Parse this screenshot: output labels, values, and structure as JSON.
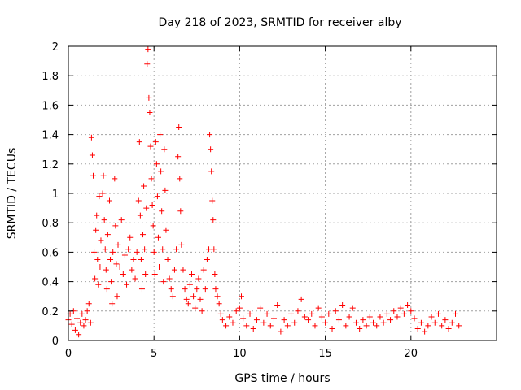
{
  "chart_data": {
    "type": "scatter",
    "title": "Day 218 of 2023, SRMTID for receiver alby",
    "xlabel": "GPS time / hours",
    "ylabel": "SRMTID / TECUs",
    "xlim": [
      0,
      25
    ],
    "ylim": [
      0,
      2
    ],
    "xticks": [
      0,
      5,
      10,
      15,
      20
    ],
    "yticks": [
      0,
      0.2,
      0.4,
      0.6,
      0.8,
      1,
      1.2,
      1.4,
      1.6,
      1.8,
      2
    ],
    "grid": true,
    "marker": "+",
    "color": "#ff0000",
    "series": [
      {
        "name": "SRMTID",
        "points": [
          [
            0.0,
            0.14
          ],
          [
            0.1,
            0.18
          ],
          [
            0.2,
            0.11
          ],
          [
            0.3,
            0.2
          ],
          [
            0.4,
            0.07
          ],
          [
            0.5,
            0.15
          ],
          [
            0.6,
            0.04
          ],
          [
            0.7,
            0.12
          ],
          [
            0.8,
            0.18
          ],
          [
            0.9,
            0.1
          ],
          [
            1.0,
            0.14
          ],
          [
            1.1,
            0.2
          ],
          [
            1.2,
            0.25
          ],
          [
            1.3,
            0.12
          ],
          [
            1.35,
            1.38
          ],
          [
            1.4,
            1.26
          ],
          [
            1.45,
            1.12
          ],
          [
            1.5,
            0.6
          ],
          [
            1.55,
            0.42
          ],
          [
            1.6,
            0.75
          ],
          [
            1.65,
            0.85
          ],
          [
            1.7,
            0.55
          ],
          [
            1.75,
            0.38
          ],
          [
            1.8,
            0.98
          ],
          [
            1.85,
            0.5
          ],
          [
            1.9,
            0.68
          ],
          [
            2.0,
            1.0
          ],
          [
            2.05,
            1.12
          ],
          [
            2.1,
            0.82
          ],
          [
            2.15,
            0.62
          ],
          [
            2.2,
            0.48
          ],
          [
            2.25,
            0.35
          ],
          [
            2.3,
            0.72
          ],
          [
            2.4,
            0.95
          ],
          [
            2.45,
            0.55
          ],
          [
            2.5,
            0.4
          ],
          [
            2.55,
            0.25
          ],
          [
            2.6,
            0.6
          ],
          [
            2.7,
            1.1
          ],
          [
            2.75,
            0.78
          ],
          [
            2.8,
            0.52
          ],
          [
            2.85,
            0.3
          ],
          [
            2.9,
            0.65
          ],
          [
            3.0,
            0.5
          ],
          [
            3.1,
            0.82
          ],
          [
            3.2,
            0.45
          ],
          [
            3.3,
            0.58
          ],
          [
            3.4,
            0.38
          ],
          [
            3.5,
            0.62
          ],
          [
            3.6,
            0.7
          ],
          [
            3.7,
            0.48
          ],
          [
            3.8,
            0.55
          ],
          [
            3.9,
            0.42
          ],
          [
            4.0,
            0.6
          ],
          [
            4.1,
            0.95
          ],
          [
            4.15,
            1.35
          ],
          [
            4.2,
            0.85
          ],
          [
            4.25,
            0.55
          ],
          [
            4.3,
            0.35
          ],
          [
            4.35,
            0.72
          ],
          [
            4.4,
            1.05
          ],
          [
            4.45,
            0.62
          ],
          [
            4.5,
            0.45
          ],
          [
            4.55,
            0.9
          ],
          [
            4.6,
            1.88
          ],
          [
            4.65,
            1.98
          ],
          [
            4.7,
            1.65
          ],
          [
            4.75,
            1.55
          ],
          [
            4.8,
            1.32
          ],
          [
            4.85,
            1.1
          ],
          [
            4.9,
            0.92
          ],
          [
            4.95,
            0.78
          ],
          [
            5.0,
            0.6
          ],
          [
            5.05,
            0.45
          ],
          [
            5.1,
            1.35
          ],
          [
            5.15,
            1.2
          ],
          [
            5.2,
            0.98
          ],
          [
            5.25,
            0.7
          ],
          [
            5.3,
            0.5
          ],
          [
            5.35,
            1.4
          ],
          [
            5.4,
            1.15
          ],
          [
            5.45,
            0.88
          ],
          [
            5.5,
            0.62
          ],
          [
            5.55,
            0.4
          ],
          [
            5.6,
            1.3
          ],
          [
            5.65,
            1.02
          ],
          [
            5.7,
            0.75
          ],
          [
            5.8,
            0.55
          ],
          [
            5.9,
            0.42
          ],
          [
            6.0,
            0.35
          ],
          [
            6.1,
            0.3
          ],
          [
            6.2,
            0.48
          ],
          [
            6.3,
            0.62
          ],
          [
            6.4,
            1.25
          ],
          [
            6.45,
            1.45
          ],
          [
            6.5,
            1.1
          ],
          [
            6.55,
            0.88
          ],
          [
            6.6,
            0.65
          ],
          [
            6.7,
            0.48
          ],
          [
            6.8,
            0.35
          ],
          [
            6.9,
            0.28
          ],
          [
            7.0,
            0.25
          ],
          [
            7.1,
            0.38
          ],
          [
            7.2,
            0.45
          ],
          [
            7.3,
            0.3
          ],
          [
            7.4,
            0.22
          ],
          [
            7.5,
            0.35
          ],
          [
            7.6,
            0.42
          ],
          [
            7.7,
            0.28
          ],
          [
            7.8,
            0.2
          ],
          [
            7.9,
            0.48
          ],
          [
            8.0,
            0.35
          ],
          [
            8.1,
            0.55
          ],
          [
            8.2,
            0.62
          ],
          [
            8.25,
            1.4
          ],
          [
            8.3,
            1.3
          ],
          [
            8.35,
            1.15
          ],
          [
            8.4,
            0.95
          ],
          [
            8.45,
            0.82
          ],
          [
            8.5,
            0.62
          ],
          [
            8.55,
            0.45
          ],
          [
            8.6,
            0.35
          ],
          [
            8.7,
            0.3
          ],
          [
            8.8,
            0.25
          ],
          [
            8.9,
            0.18
          ],
          [
            9.0,
            0.14
          ],
          [
            9.2,
            0.1
          ],
          [
            9.4,
            0.16
          ],
          [
            9.6,
            0.12
          ],
          [
            9.8,
            0.2
          ],
          [
            10.0,
            0.22
          ],
          [
            10.1,
            0.3
          ],
          [
            10.2,
            0.15
          ],
          [
            10.4,
            0.1
          ],
          [
            10.6,
            0.18
          ],
          [
            10.8,
            0.08
          ],
          [
            11.0,
            0.14
          ],
          [
            11.2,
            0.22
          ],
          [
            11.4,
            0.12
          ],
          [
            11.6,
            0.18
          ],
          [
            11.8,
            0.1
          ],
          [
            12.0,
            0.15
          ],
          [
            12.2,
            0.24
          ],
          [
            12.4,
            0.06
          ],
          [
            12.6,
            0.14
          ],
          [
            12.8,
            0.1
          ],
          [
            13.0,
            0.18
          ],
          [
            13.2,
            0.12
          ],
          [
            13.4,
            0.2
          ],
          [
            13.6,
            0.28
          ],
          [
            13.8,
            0.16
          ],
          [
            14.0,
            0.14
          ],
          [
            14.2,
            0.18
          ],
          [
            14.4,
            0.1
          ],
          [
            14.6,
            0.22
          ],
          [
            14.8,
            0.16
          ],
          [
            15.0,
            0.12
          ],
          [
            15.2,
            0.18
          ],
          [
            15.4,
            0.08
          ],
          [
            15.6,
            0.2
          ],
          [
            15.8,
            0.14
          ],
          [
            16.0,
            0.24
          ],
          [
            16.2,
            0.1
          ],
          [
            16.4,
            0.16
          ],
          [
            16.6,
            0.22
          ],
          [
            16.8,
            0.12
          ],
          [
            17.0,
            0.08
          ],
          [
            17.2,
            0.14
          ],
          [
            17.4,
            0.1
          ],
          [
            17.6,
            0.16
          ],
          [
            17.8,
            0.12
          ],
          [
            18.0,
            0.1
          ],
          [
            18.2,
            0.16
          ],
          [
            18.4,
            0.12
          ],
          [
            18.6,
            0.18
          ],
          [
            18.8,
            0.14
          ],
          [
            19.0,
            0.2
          ],
          [
            19.2,
            0.16
          ],
          [
            19.4,
            0.22
          ],
          [
            19.6,
            0.18
          ],
          [
            19.8,
            0.24
          ],
          [
            20.0,
            0.2
          ],
          [
            20.2,
            0.15
          ],
          [
            20.4,
            0.08
          ],
          [
            20.6,
            0.12
          ],
          [
            20.8,
            0.06
          ],
          [
            21.0,
            0.1
          ],
          [
            21.2,
            0.16
          ],
          [
            21.4,
            0.12
          ],
          [
            21.6,
            0.18
          ],
          [
            21.8,
            0.1
          ],
          [
            22.0,
            0.14
          ],
          [
            22.2,
            0.08
          ],
          [
            22.4,
            0.12
          ],
          [
            22.6,
            0.18
          ],
          [
            22.8,
            0.1
          ]
        ]
      }
    ]
  }
}
